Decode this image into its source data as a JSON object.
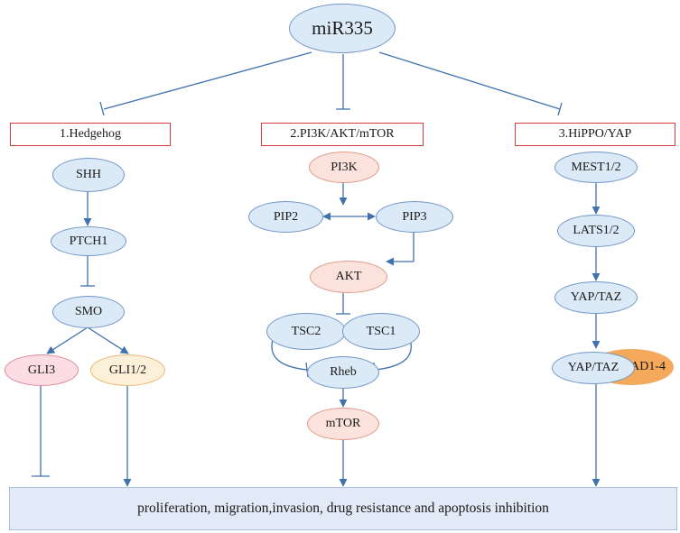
{
  "root": "miR335",
  "pathways": {
    "hedgehog": {
      "title": "1.Hedgehog",
      "nodes": [
        "SHH",
        "PTCH1",
        "SMO",
        "GLI3",
        "GLI1/2"
      ]
    },
    "pi3k": {
      "title": "2.PI3K/AKT/mTOR",
      "nodes": [
        "PI3K",
        "PIP2",
        "PIP3",
        "AKT",
        "TSC2",
        "TSC1",
        "Rheb",
        "mTOR"
      ]
    },
    "hippo": {
      "title": "3.HiPPO/YAP",
      "nodes": [
        "MEST1/2",
        "LATS1/2",
        "YAP/TAZ",
        "YAP/TAZ",
        "TEAD1-4"
      ]
    }
  },
  "outcome": "proliferation, migration,invasion, drug resistance and apoptosis  inhibition",
  "colors": {
    "line": "#3f72af",
    "box_border": "#d9393c",
    "blue_fill": "#dce9f7",
    "pink_fill": "#fbe2dc",
    "rose_fill": "#fbdde3",
    "cream_fill": "#fdf0d8",
    "orange_fill": "#f5a95c",
    "outcome_fill": "#e1eaf6"
  }
}
